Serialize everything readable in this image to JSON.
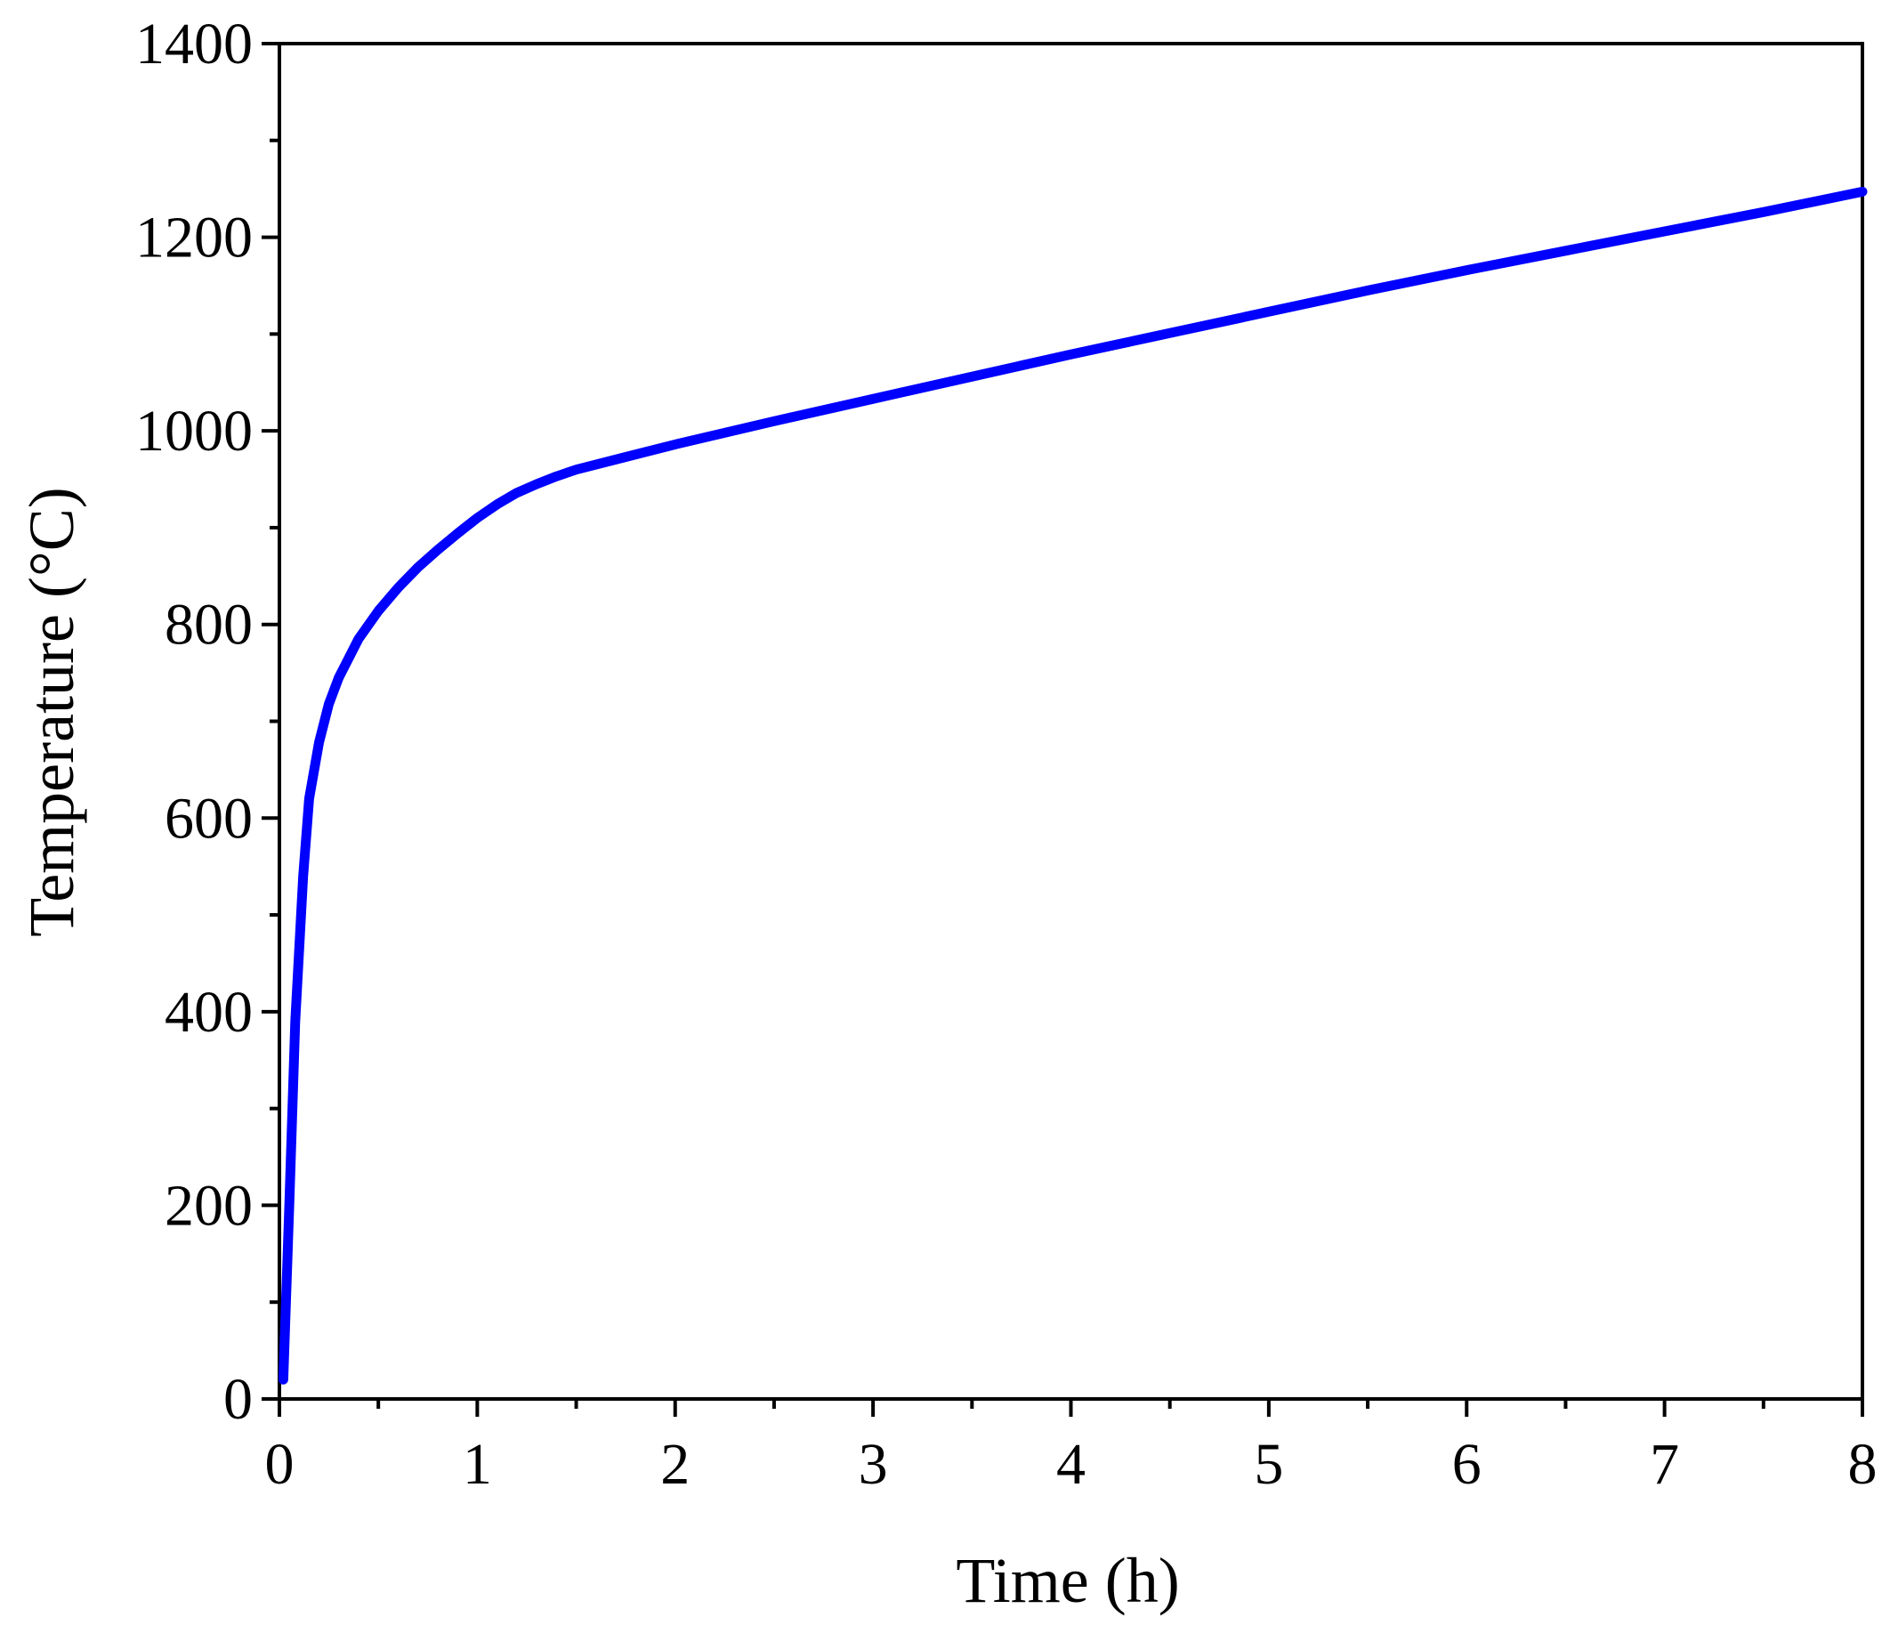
{
  "chart_data": {
    "type": "line",
    "title": "",
    "xlabel": "Time (h)",
    "ylabel": "Temperature (°C)",
    "xlim": [
      0,
      8
    ],
    "ylim": [
      0,
      1400
    ],
    "x_ticks": [
      "0",
      "1",
      "2",
      "3",
      "4",
      "5",
      "6",
      "7",
      "8"
    ],
    "y_ticks": [
      "0",
      "200",
      "400",
      "600",
      "800",
      "1000",
      "1200",
      "1400"
    ],
    "grid": false,
    "legend": "none",
    "line_color": "#0000ff",
    "axis_color": "#000000",
    "series": [
      {
        "x": [
          0.02,
          0.05,
          0.08,
          0.12,
          0.15,
          0.2,
          0.25,
          0.3,
          0.4,
          0.5,
          0.6,
          0.7,
          0.8,
          0.9,
          1.0,
          1.1,
          1.2,
          1.3,
          1.4,
          1.5,
          1.75,
          2.0,
          2.5,
          3.0,
          3.5,
          4.0,
          4.5,
          5.0,
          5.5,
          6.0,
          6.5,
          7.0,
          7.5,
          8.0
        ],
        "y": [
          20,
          200,
          390,
          540,
          620,
          678,
          718,
          745,
          785,
          814,
          838,
          859,
          877,
          894,
          910,
          924,
          936,
          945,
          953,
          960,
          973,
          986,
          1010,
          1033,
          1056,
          1079,
          1101,
          1123,
          1145,
          1166,
          1186,
          1206,
          1226,
          1247
        ]
      }
    ]
  }
}
